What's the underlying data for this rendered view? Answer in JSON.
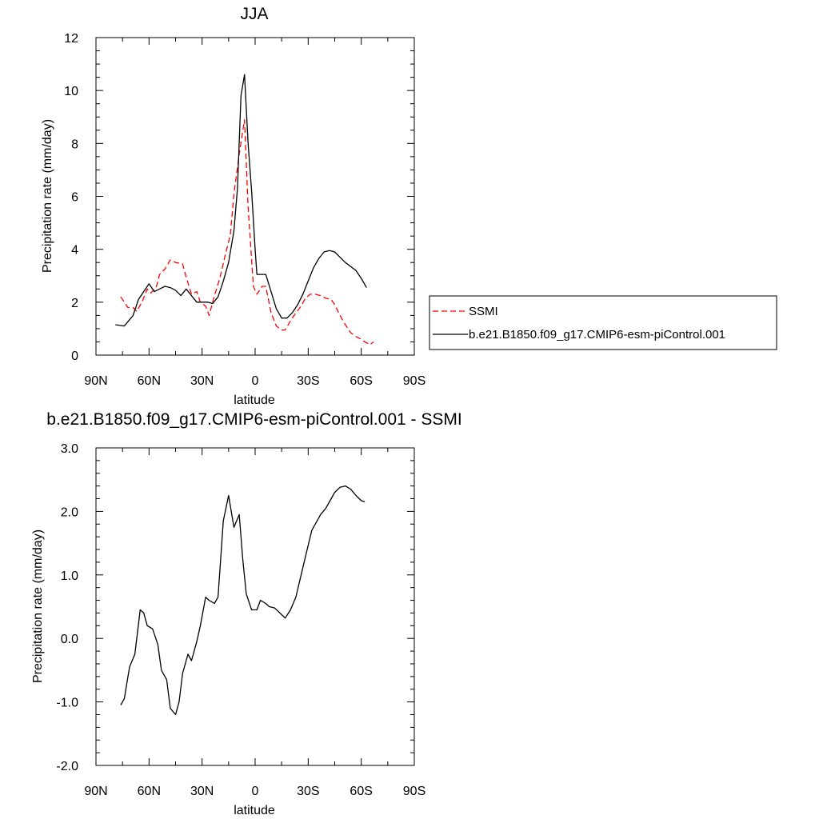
{
  "chart_data": [
    {
      "type": "line",
      "title": "JJA",
      "xlabel": "latitude",
      "ylabel": "Precipitation rate (mm/day)",
      "xlim": [
        -90,
        90
      ],
      "ylim": [
        0,
        12
      ],
      "x_ticks": [
        -90,
        -60,
        -30,
        0,
        30,
        60,
        90
      ],
      "x_tick_labels": [
        "90N",
        "60N",
        "30N",
        "0",
        "30S",
        "60S",
        "90S"
      ],
      "y_ticks": [
        0,
        2,
        4,
        6,
        8,
        10,
        12
      ],
      "y_tick_labels": [
        "0",
        "2",
        "4",
        "6",
        "8",
        "10",
        "12"
      ],
      "grid": false,
      "legend": "right",
      "series": [
        {
          "name": "SSMI",
          "color": "#ff0000",
          "dash": "dashed",
          "x": [
            -76,
            -74,
            -72,
            -69,
            -67,
            -64,
            -61,
            -59,
            -56,
            -54,
            -51,
            -48,
            -45,
            -41,
            -39,
            -36,
            -33,
            -31,
            -28,
            -26,
            -23,
            -20,
            -17,
            -14,
            -12,
            -9,
            -6,
            -4,
            -1,
            1,
            4,
            6,
            9,
            12,
            15,
            17,
            20,
            23,
            26,
            28,
            31,
            34,
            37,
            40,
            43,
            45,
            48,
            51,
            54,
            57,
            60,
            62,
            65,
            67
          ],
          "y": [
            2.2,
            2.0,
            1.8,
            1.8,
            1.65,
            2.0,
            2.5,
            2.35,
            2.55,
            3.05,
            3.25,
            3.6,
            3.5,
            3.45,
            2.95,
            2.3,
            2.4,
            2.0,
            1.85,
            1.5,
            2.25,
            2.9,
            3.75,
            4.55,
            6.1,
            7.6,
            8.9,
            5.6,
            2.6,
            2.3,
            2.6,
            2.6,
            1.6,
            1.1,
            0.95,
            0.95,
            1.3,
            1.6,
            1.85,
            2.1,
            2.3,
            2.3,
            2.25,
            2.15,
            2.1,
            1.9,
            1.5,
            1.15,
            0.85,
            0.7,
            0.6,
            0.5,
            0.4,
            0.5
          ]
        },
        {
          "name": "b.e21.B1850.f09_g17.CMIP6-esm-piControl.001",
          "color": "#000000",
          "dash": "solid",
          "x": [
            -79,
            -74,
            -69,
            -66,
            -63,
            -60,
            -57,
            -54,
            -51,
            -48,
            -45,
            -42,
            -39,
            -36,
            -33,
            -30,
            -27,
            -24,
            -21,
            -18,
            -15,
            -12,
            -10,
            -8,
            -6,
            -4,
            -2,
            0,
            1,
            3,
            6,
            9,
            12,
            15,
            18,
            21,
            24,
            27,
            30,
            33,
            36,
            39,
            42,
            45,
            48,
            51,
            54,
            57,
            60,
            63
          ],
          "y": [
            1.15,
            1.1,
            1.5,
            2.1,
            2.4,
            2.7,
            2.4,
            2.5,
            2.6,
            2.55,
            2.45,
            2.25,
            2.5,
            2.25,
            2.0,
            2.0,
            2.0,
            1.95,
            2.2,
            2.8,
            3.5,
            4.7,
            6.3,
            9.8,
            10.6,
            8.0,
            6.2,
            4.0,
            3.05,
            3.05,
            3.05,
            2.4,
            1.75,
            1.4,
            1.4,
            1.6,
            1.9,
            2.3,
            2.8,
            3.3,
            3.65,
            3.9,
            3.95,
            3.9,
            3.7,
            3.5,
            3.35,
            3.2,
            2.9,
            2.55
          ]
        }
      ]
    },
    {
      "type": "line",
      "title": "b.e21.B1850.f09_g17.CMIP6-esm-piControl.001 - SSMI",
      "xlabel": "latitude",
      "ylabel": "Precipitation rate (mm/day)",
      "xlim": [
        -90,
        90
      ],
      "ylim": [
        -2.0,
        3.0
      ],
      "x_ticks": [
        -90,
        -60,
        -30,
        0,
        30,
        60,
        90
      ],
      "x_tick_labels": [
        "90N",
        "60N",
        "30N",
        "0",
        "30S",
        "60S",
        "90S"
      ],
      "y_ticks": [
        -2,
        -1,
        0,
        1,
        2,
        3
      ],
      "y_tick_labels": [
        "-2.0",
        "-1.0",
        "0.0",
        "1.0",
        "2.0",
        "3.0"
      ],
      "grid": false,
      "series": [
        {
          "color": "#000000",
          "dash": "solid",
          "x": [
            -76,
            -74,
            -71,
            -68,
            -65,
            -63,
            -61,
            -58,
            -55,
            -53,
            -50,
            -48,
            -45,
            -43,
            -41,
            -38,
            -36,
            -33,
            -31,
            -28,
            -26,
            -23,
            -21,
            -18,
            -15,
            -12,
            -9,
            -7,
            -5,
            -2,
            1,
            3,
            6,
            8,
            11,
            14,
            17,
            20,
            23,
            26,
            29,
            32,
            34,
            37,
            40,
            43,
            45,
            48,
            51,
            54,
            57,
            60,
            62
          ],
          "y": [
            -1.05,
            -0.95,
            -0.45,
            -0.25,
            0.45,
            0.4,
            0.2,
            0.15,
            -0.1,
            -0.5,
            -0.65,
            -1.1,
            -1.2,
            -1.0,
            -0.55,
            -0.25,
            -0.35,
            -0.05,
            0.2,
            0.65,
            0.6,
            0.55,
            0.65,
            1.85,
            2.25,
            1.75,
            1.95,
            1.25,
            0.7,
            0.45,
            0.45,
            0.6,
            0.55,
            0.5,
            0.48,
            0.4,
            0.32,
            0.45,
            0.65,
            1.0,
            1.35,
            1.7,
            1.8,
            1.95,
            2.05,
            2.2,
            2.3,
            2.38,
            2.4,
            2.35,
            2.25,
            2.17,
            2.15
          ]
        }
      ]
    }
  ]
}
